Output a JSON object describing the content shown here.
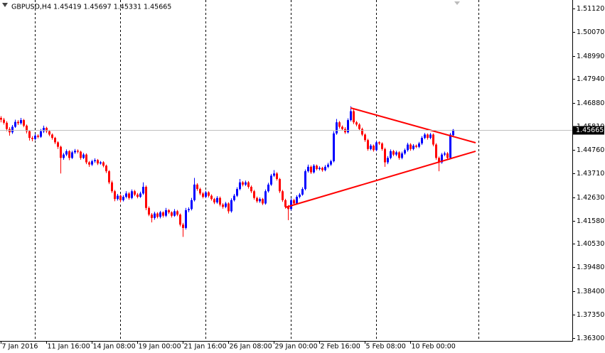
{
  "chart_data": {
    "type": "candlestick",
    "title": "GBPUSD,H4  1.45419 1.45697 1.45331 1.45665",
    "up_color": "#0000ff",
    "down_color": "#ff0000",
    "xlim": [
      -0.25,
      201
    ],
    "ylim": [
      1.3617,
      1.515
    ],
    "yticks": [
      {
        "value": 1.5112,
        "label": "1.51120"
      },
      {
        "value": 1.5007,
        "label": "1.50070"
      },
      {
        "value": 1.4899,
        "label": "1.48990"
      },
      {
        "value": 1.4794,
        "label": "1.47940"
      },
      {
        "value": 1.4688,
        "label": "1.46880"
      },
      {
        "value": 1.4581,
        "label": "1.45810"
      },
      {
        "value": 1.4476,
        "label": "1.44760"
      },
      {
        "value": 1.4371,
        "label": "1.43710"
      },
      {
        "value": 1.4263,
        "label": "1.42630"
      },
      {
        "value": 1.4158,
        "label": "1.41580"
      },
      {
        "value": 1.4053,
        "label": "1.40530"
      },
      {
        "value": 1.3948,
        "label": "1.39480"
      },
      {
        "value": 1.384,
        "label": "1.38400"
      },
      {
        "value": 1.3735,
        "label": "1.37350"
      },
      {
        "value": 1.363,
        "label": "1.36300"
      }
    ],
    "xticks": [
      {
        "value": 0,
        "label": "7 Jan 2016"
      },
      {
        "value": 16,
        "label": "11 Jan 16:00"
      },
      {
        "value": 32,
        "label": "14 Jan 08:00"
      },
      {
        "value": 48,
        "label": "19 Jan 00:00"
      },
      {
        "value": 64,
        "label": "21 Jan 16:00"
      },
      {
        "value": 80,
        "label": "26 Jan 08:00"
      },
      {
        "value": 96,
        "label": "29 Jan 00:00"
      },
      {
        "value": 112,
        "label": "2 Feb 16:00"
      },
      {
        "value": 128,
        "label": "5 Feb 08:00"
      },
      {
        "value": 144,
        "label": "10 Feb 00:00"
      }
    ],
    "xgrid": [
      12,
      42,
      72,
      102,
      132,
      168
    ],
    "price_line": {
      "value": 1.45665,
      "label": "1.45665"
    },
    "trendlines": [
      {
        "x": [
          123,
          167
        ],
        "y": [
          1.4665,
          1.4508
        ],
        "color": "#ff0000"
      },
      {
        "x": [
          100,
          167
        ],
        "y": [
          1.4217,
          1.447
        ],
        "color": "#ff0000"
      }
    ],
    "ohlc": [
      [
        1.462,
        1.4628,
        1.46,
        1.4612
      ],
      [
        1.4612,
        1.462,
        1.459,
        1.4598
      ],
      [
        1.4598,
        1.4605,
        1.456,
        1.457
      ],
      [
        1.457,
        1.4578,
        1.454,
        1.4555
      ],
      [
        1.4555,
        1.4588,
        1.4548,
        1.458
      ],
      [
        1.458,
        1.4612,
        1.4575,
        1.4602
      ],
      [
        1.4602,
        1.461,
        1.4588,
        1.4596
      ],
      [
        1.4596,
        1.462,
        1.459,
        1.461
      ],
      [
        1.461,
        1.4615,
        1.4578,
        1.4585
      ],
      [
        1.4585,
        1.459,
        1.455,
        1.456
      ],
      [
        1.456,
        1.4565,
        1.4518,
        1.453
      ],
      [
        1.453,
        1.4538,
        1.4515,
        1.4525
      ],
      [
        1.4525,
        1.4548,
        1.452,
        1.454
      ],
      [
        1.454,
        1.4546,
        1.4528,
        1.4535
      ],
      [
        1.4535,
        1.457,
        1.453,
        1.456
      ],
      [
        1.456,
        1.4585,
        1.4552,
        1.4575
      ],
      [
        1.4575,
        1.458,
        1.4552,
        1.456
      ],
      [
        1.456,
        1.4566,
        1.4538,
        1.4545
      ],
      [
        1.4545,
        1.455,
        1.4522,
        1.453
      ],
      [
        1.453,
        1.4535,
        1.4502,
        1.451
      ],
      [
        1.451,
        1.4515,
        1.448,
        1.449
      ],
      [
        1.449,
        1.4495,
        1.437,
        1.444
      ],
      [
        1.444,
        1.4462,
        1.4432,
        1.4455
      ],
      [
        1.4455,
        1.4478,
        1.4448,
        1.447
      ],
      [
        1.447,
        1.4475,
        1.443,
        1.444
      ],
      [
        1.444,
        1.4472,
        1.4435,
        1.4465
      ],
      [
        1.4465,
        1.448,
        1.4458,
        1.4472
      ],
      [
        1.4472,
        1.4478,
        1.446,
        1.4468
      ],
      [
        1.4468,
        1.4472,
        1.4432,
        1.444
      ],
      [
        1.444,
        1.4462,
        1.4435,
        1.4455
      ],
      [
        1.4455,
        1.446,
        1.4412,
        1.442
      ],
      [
        1.442,
        1.4426,
        1.44,
        1.441
      ],
      [
        1.441,
        1.4432,
        1.4404,
        1.4425
      ],
      [
        1.4425,
        1.4438,
        1.4418,
        1.443
      ],
      [
        1.443,
        1.4435,
        1.4408,
        1.4415
      ],
      [
        1.4415,
        1.4426,
        1.441,
        1.442
      ],
      [
        1.442,
        1.4425,
        1.4398,
        1.4405
      ],
      [
        1.4405,
        1.441,
        1.4372,
        1.438
      ],
      [
        1.438,
        1.4385,
        1.4322,
        1.433
      ],
      [
        1.433,
        1.4338,
        1.4282,
        1.429
      ],
      [
        1.429,
        1.4296,
        1.4245,
        1.4255
      ],
      [
        1.4255,
        1.4278,
        1.4248,
        1.427
      ],
      [
        1.427,
        1.4276,
        1.424,
        1.425
      ],
      [
        1.425,
        1.4272,
        1.4244,
        1.4265
      ],
      [
        1.4265,
        1.429,
        1.4258,
        1.428
      ],
      [
        1.428,
        1.4286,
        1.4252,
        1.426
      ],
      [
        1.426,
        1.4298,
        1.4254,
        1.429
      ],
      [
        1.429,
        1.4296,
        1.4268,
        1.4275
      ],
      [
        1.4275,
        1.4282,
        1.4258,
        1.4265
      ],
      [
        1.4265,
        1.4288,
        1.426,
        1.428
      ],
      [
        1.428,
        1.433,
        1.4274,
        1.431
      ],
      [
        1.431,
        1.4316,
        1.4205,
        1.4215
      ],
      [
        1.4215,
        1.4222,
        1.4178,
        1.4185
      ],
      [
        1.4185,
        1.4192,
        1.415,
        1.417
      ],
      [
        1.417,
        1.4198,
        1.4162,
        1.419
      ],
      [
        1.419,
        1.4196,
        1.4168,
        1.4175
      ],
      [
        1.4175,
        1.4202,
        1.4168,
        1.4195
      ],
      [
        1.4195,
        1.42,
        1.4172,
        1.418
      ],
      [
        1.418,
        1.4215,
        1.4174,
        1.4205
      ],
      [
        1.4205,
        1.421,
        1.4188,
        1.4195
      ],
      [
        1.4195,
        1.42,
        1.4172,
        1.418
      ],
      [
        1.418,
        1.421,
        1.4175,
        1.42
      ],
      [
        1.42,
        1.4206,
        1.4178,
        1.4185
      ],
      [
        1.4185,
        1.419,
        1.4132,
        1.414
      ],
      [
        1.414,
        1.4148,
        1.4085,
        1.4125
      ],
      [
        1.4125,
        1.4215,
        1.4118,
        1.4205
      ],
      [
        1.4205,
        1.4218,
        1.4196,
        1.421
      ],
      [
        1.421,
        1.426,
        1.4204,
        1.425
      ],
      [
        1.425,
        1.435,
        1.4244,
        1.432
      ],
      [
        1.432,
        1.4326,
        1.4292,
        1.43
      ],
      [
        1.43,
        1.4306,
        1.4272,
        1.428
      ],
      [
        1.428,
        1.4286,
        1.4258,
        1.4265
      ],
      [
        1.4265,
        1.4292,
        1.426,
        1.4285
      ],
      [
        1.4285,
        1.429,
        1.4262,
        1.427
      ],
      [
        1.427,
        1.4276,
        1.4248,
        1.4255
      ],
      [
        1.4255,
        1.426,
        1.4232,
        1.424
      ],
      [
        1.424,
        1.4268,
        1.4234,
        1.426
      ],
      [
        1.426,
        1.4266,
        1.4222,
        1.423
      ],
      [
        1.423,
        1.4236,
        1.4212,
        1.422
      ],
      [
        1.422,
        1.4242,
        1.4214,
        1.4235
      ],
      [
        1.4235,
        1.424,
        1.419,
        1.42
      ],
      [
        1.42,
        1.4258,
        1.4194,
        1.425
      ],
      [
        1.425,
        1.4278,
        1.4244,
        1.427
      ],
      [
        1.427,
        1.4308,
        1.4264,
        1.43
      ],
      [
        1.43,
        1.4345,
        1.4294,
        1.433
      ],
      [
        1.433,
        1.4336,
        1.4312,
        1.432
      ],
      [
        1.432,
        1.4338,
        1.4314,
        1.433
      ],
      [
        1.433,
        1.4336,
        1.4302,
        1.431
      ],
      [
        1.431,
        1.4316,
        1.4282,
        1.429
      ],
      [
        1.429,
        1.4296,
        1.4252,
        1.426
      ],
      [
        1.426,
        1.4266,
        1.4238,
        1.4245
      ],
      [
        1.4245,
        1.4262,
        1.4238,
        1.4255
      ],
      [
        1.4255,
        1.426,
        1.4228,
        1.4235
      ],
      [
        1.4235,
        1.4298,
        1.423,
        1.429
      ],
      [
        1.429,
        1.4328,
        1.4284,
        1.432
      ],
      [
        1.432,
        1.4368,
        1.4314,
        1.436
      ],
      [
        1.436,
        1.4385,
        1.4354,
        1.437
      ],
      [
        1.437,
        1.4376,
        1.4338,
        1.4345
      ],
      [
        1.4345,
        1.435,
        1.4282,
        1.429
      ],
      [
        1.429,
        1.4296,
        1.4242,
        1.425
      ],
      [
        1.425,
        1.4256,
        1.4212,
        1.422
      ],
      [
        1.422,
        1.4228,
        1.416,
        1.421
      ],
      [
        1.421,
        1.4258,
        1.4204,
        1.425
      ],
      [
        1.425,
        1.4256,
        1.4228,
        1.4235
      ],
      [
        1.4235,
        1.4272,
        1.423,
        1.4265
      ],
      [
        1.4265,
        1.4282,
        1.4258,
        1.4275
      ],
      [
        1.4275,
        1.4308,
        1.427,
        1.43
      ],
      [
        1.43,
        1.4388,
        1.4294,
        1.438
      ],
      [
        1.438,
        1.441,
        1.4374,
        1.44
      ],
      [
        1.44,
        1.4406,
        1.4368,
        1.4375
      ],
      [
        1.4375,
        1.4412,
        1.437,
        1.4405
      ],
      [
        1.4405,
        1.441,
        1.4384,
        1.439
      ],
      [
        1.439,
        1.4402,
        1.4384,
        1.4395
      ],
      [
        1.4395,
        1.44,
        1.4378,
        1.4385
      ],
      [
        1.4385,
        1.4408,
        1.438,
        1.44
      ],
      [
        1.44,
        1.4418,
        1.4394,
        1.441
      ],
      [
        1.441,
        1.4432,
        1.4404,
        1.4425
      ],
      [
        1.4425,
        1.456,
        1.442,
        1.455
      ],
      [
        1.455,
        1.4615,
        1.4544,
        1.46
      ],
      [
        1.46,
        1.4606,
        1.4572,
        1.458
      ],
      [
        1.458,
        1.4586,
        1.4562,
        1.457
      ],
      [
        1.457,
        1.4578,
        1.4548,
        1.4555
      ],
      [
        1.4555,
        1.4618,
        1.455,
        1.461
      ],
      [
        1.461,
        1.4672,
        1.4604,
        1.465
      ],
      [
        1.465,
        1.466,
        1.4592,
        1.46
      ],
      [
        1.46,
        1.4606,
        1.4582,
        1.459
      ],
      [
        1.459,
        1.4596,
        1.4562,
        1.457
      ],
      [
        1.457,
        1.4576,
        1.4538,
        1.4545
      ],
      [
        1.4545,
        1.455,
        1.4512,
        1.452
      ],
      [
        1.452,
        1.4526,
        1.4472,
        1.448
      ],
      [
        1.448,
        1.4502,
        1.4474,
        1.4495
      ],
      [
        1.4495,
        1.45,
        1.4468,
        1.4475
      ],
      [
        1.4475,
        1.4518,
        1.447,
        1.451
      ],
      [
        1.451,
        1.4515,
        1.4498,
        1.4505
      ],
      [
        1.4505,
        1.451,
        1.4472,
        1.448
      ],
      [
        1.448,
        1.4486,
        1.44,
        1.442
      ],
      [
        1.442,
        1.4448,
        1.4412,
        1.444
      ],
      [
        1.444,
        1.4478,
        1.4434,
        1.447
      ],
      [
        1.447,
        1.4476,
        1.4448,
        1.4455
      ],
      [
        1.4455,
        1.4472,
        1.4448,
        1.4465
      ],
      [
        1.4465,
        1.447,
        1.4432,
        1.444
      ],
      [
        1.444,
        1.4468,
        1.4434,
        1.446
      ],
      [
        1.446,
        1.4482,
        1.4454,
        1.4475
      ],
      [
        1.4475,
        1.4508,
        1.4468,
        1.45
      ],
      [
        1.45,
        1.4506,
        1.4472,
        1.448
      ],
      [
        1.448,
        1.4502,
        1.4474,
        1.4495
      ],
      [
        1.4495,
        1.45,
        1.4484,
        1.449
      ],
      [
        1.449,
        1.4512,
        1.4484,
        1.4505
      ],
      [
        1.4505,
        1.4538,
        1.4498,
        1.453
      ],
      [
        1.453,
        1.4552,
        1.4524,
        1.4545
      ],
      [
        1.4545,
        1.455,
        1.4522,
        1.453
      ],
      [
        1.453,
        1.4552,
        1.4524,
        1.4545
      ],
      [
        1.4545,
        1.455,
        1.4492,
        1.45
      ],
      [
        1.45,
        1.4506,
        1.4432,
        1.444
      ],
      [
        1.444,
        1.4446,
        1.438,
        1.442
      ],
      [
        1.442,
        1.4462,
        1.4414,
        1.4455
      ],
      [
        1.4455,
        1.4468,
        1.4448,
        1.446
      ],
      [
        1.446,
        1.4466,
        1.4432,
        1.444
      ],
      [
        1.444,
        1.4552,
        1.4434,
        1.4545
      ],
      [
        1.45419,
        1.45697,
        1.45331,
        1.45665
      ]
    ]
  }
}
